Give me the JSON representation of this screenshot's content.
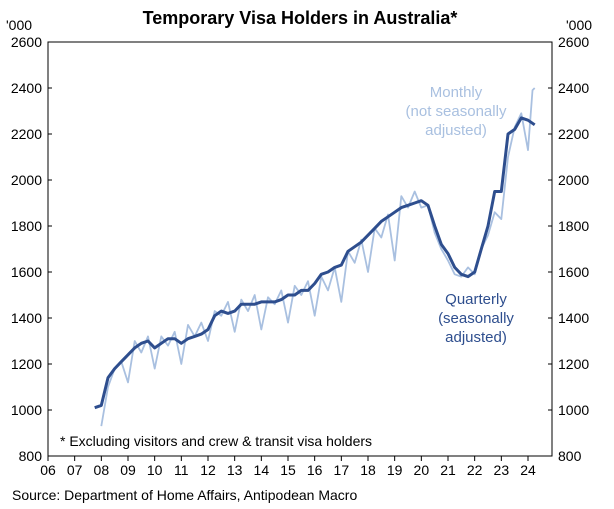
{
  "chart_data": {
    "type": "line",
    "title": "Temporary Visa Holders in Australia*",
    "unit_left": "'000",
    "unit_right": "'000",
    "footnote": "* Excluding visitors and crew & transit visa holders",
    "source": "Source: Department of Home Affairs, Antipodean Macro",
    "ylim": [
      800,
      2600
    ],
    "y_ticks": [
      "800",
      "1000",
      "1200",
      "1400",
      "1600",
      "1800",
      "2000",
      "2200",
      "2400",
      "2600"
    ],
    "y_tick_values": [
      800,
      1000,
      1200,
      1400,
      1600,
      1800,
      2000,
      2200,
      2400,
      2600
    ],
    "xlim": [
      2006,
      2024.9
    ],
    "x_ticks": [
      "06",
      "07",
      "08",
      "09",
      "10",
      "11",
      "12",
      "13",
      "14",
      "15",
      "16",
      "17",
      "18",
      "19",
      "20",
      "21",
      "22",
      "23",
      "24"
    ],
    "x_tick_values": [
      2006,
      2007,
      2008,
      2009,
      2010,
      2011,
      2012,
      2013,
      2014,
      2015,
      2016,
      2017,
      2018,
      2019,
      2020,
      2021,
      2022,
      2023,
      2024
    ],
    "series": [
      {
        "name": "Monthly (not seasonally adjusted)",
        "label_lines": [
          "Monthly",
          "(not seasonally",
          "adjusted)"
        ],
        "color": "#a9c0e0",
        "x": [
          2008.0,
          2008.25,
          2008.5,
          2008.75,
          2009.0,
          2009.25,
          2009.5,
          2009.75,
          2010.0,
          2010.25,
          2010.5,
          2010.75,
          2011.0,
          2011.25,
          2011.5,
          2011.75,
          2012.0,
          2012.25,
          2012.5,
          2012.75,
          2013.0,
          2013.25,
          2013.5,
          2013.75,
          2014.0,
          2014.25,
          2014.5,
          2014.75,
          2015.0,
          2015.25,
          2015.5,
          2015.75,
          2016.0,
          2016.25,
          2016.5,
          2016.75,
          2017.0,
          2017.25,
          2017.5,
          2017.75,
          2018.0,
          2018.25,
          2018.5,
          2018.75,
          2019.0,
          2019.25,
          2019.5,
          2019.75,
          2020.0,
          2020.25,
          2020.5,
          2020.75,
          2021.0,
          2021.25,
          2021.5,
          2021.75,
          2022.0,
          2022.25,
          2022.5,
          2022.75,
          2023.0,
          2023.25,
          2023.5,
          2023.75,
          2024.0,
          2024.17,
          2024.25
        ],
        "values": [
          930,
          1100,
          1180,
          1210,
          1120,
          1300,
          1250,
          1320,
          1180,
          1320,
          1280,
          1340,
          1200,
          1370,
          1320,
          1380,
          1300,
          1430,
          1410,
          1470,
          1340,
          1480,
          1430,
          1500,
          1350,
          1490,
          1460,
          1520,
          1380,
          1540,
          1500,
          1560,
          1410,
          1580,
          1520,
          1620,
          1470,
          1690,
          1640,
          1740,
          1600,
          1790,
          1750,
          1850,
          1650,
          1930,
          1880,
          1950,
          1880,
          1890,
          1770,
          1700,
          1650,
          1590,
          1580,
          1620,
          1590,
          1700,
          1760,
          1860,
          1830,
          2100,
          2230,
          2290,
          2130,
          2390,
          2400
        ]
      },
      {
        "name": "Quarterly (seasonally adjusted)",
        "label_lines": [
          "Quarterly",
          "(seasonally",
          "adjusted)"
        ],
        "color": "#2e4e8e",
        "x": [
          2007.75,
          2008.0,
          2008.25,
          2008.5,
          2008.75,
          2009.0,
          2009.25,
          2009.5,
          2009.75,
          2010.0,
          2010.25,
          2010.5,
          2010.75,
          2011.0,
          2011.25,
          2011.5,
          2011.75,
          2012.0,
          2012.25,
          2012.5,
          2012.75,
          2013.0,
          2013.25,
          2013.5,
          2013.75,
          2014.0,
          2014.25,
          2014.5,
          2014.75,
          2015.0,
          2015.25,
          2015.5,
          2015.75,
          2016.0,
          2016.25,
          2016.5,
          2016.75,
          2017.0,
          2017.25,
          2017.5,
          2017.75,
          2018.0,
          2018.25,
          2018.5,
          2018.75,
          2019.0,
          2019.25,
          2019.5,
          2019.75,
          2020.0,
          2020.25,
          2020.5,
          2020.75,
          2021.0,
          2021.25,
          2021.5,
          2021.75,
          2022.0,
          2022.25,
          2022.5,
          2022.75,
          2023.0,
          2023.25,
          2023.5,
          2023.75,
          2024.0,
          2024.25
        ],
        "values": [
          1010,
          1020,
          1140,
          1180,
          1210,
          1240,
          1270,
          1290,
          1300,
          1270,
          1290,
          1310,
          1310,
          1290,
          1310,
          1320,
          1330,
          1350,
          1410,
          1430,
          1420,
          1430,
          1460,
          1460,
          1460,
          1470,
          1470,
          1470,
          1480,
          1500,
          1500,
          1520,
          1520,
          1550,
          1590,
          1600,
          1620,
          1630,
          1690,
          1710,
          1730,
          1760,
          1790,
          1820,
          1840,
          1860,
          1880,
          1890,
          1900,
          1910,
          1890,
          1800,
          1720,
          1680,
          1620,
          1590,
          1580,
          1600,
          1700,
          1800,
          1950,
          1950,
          2200,
          2220,
          2270,
          2260,
          2240
        ]
      }
    ]
  }
}
